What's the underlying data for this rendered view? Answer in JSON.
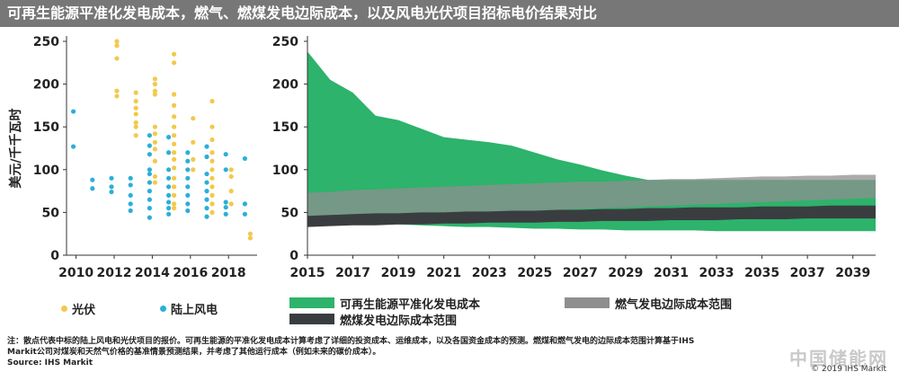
{
  "title": "可再生能源平准化发电成本，燃气、燃煤发电边际成本，以及风电光伏项目招标电价结果对比",
  "colors": {
    "solar": "#f2c94c",
    "wind": "#2bafd8",
    "lcoe": "#2db36b",
    "gas": "#8f8f8f",
    "coal": "#3a3d40",
    "title_bg": "#777777"
  },
  "legend": {
    "solar": "光伏",
    "wind": "陆上风电",
    "lcoe": "可再生能源平准化发电成本",
    "gas": "燃气发电边际成本范围",
    "coal": "燃煤发电边际成本范围"
  },
  "footnote": {
    "line1": "注：散点代表中标的陆上风电和光伏项目的报价。可再生能源的平准化发电成本计算考虑了详细的投资成本、运维成本，以及各国资金成本的预测。燃煤和燃气发电的边际成本范围计算基于IHS",
    "line2": "Markit公司对煤炭和天然气价格的基准情景预测结果，并考虑了其他运行成本（例如未来的碳价成本）。",
    "line3": "Source: IHS Markit"
  },
  "copyright": "© 2019 IHS Markit",
  "watermark": "中国储能网",
  "chart_data": [
    {
      "type": "scatter",
      "ylabel": "美元/千千瓦时",
      "ylim": [
        0,
        250
      ],
      "yticks": [
        0,
        50,
        100,
        150,
        200,
        250
      ],
      "xlim": [
        2009.5,
        2019.5
      ],
      "xticks": [
        2010,
        2012,
        2014,
        2016,
        2018
      ],
      "series": [
        {
          "name": "光伏",
          "points": [
            [
              2012,
              250
            ],
            [
              2012,
              245
            ],
            [
              2012,
              230
            ],
            [
              2012,
              192
            ],
            [
              2012,
              186
            ],
            [
              2013,
              190
            ],
            [
              2013,
              180
            ],
            [
              2013,
              172
            ],
            [
              2013,
              165
            ],
            [
              2013,
              155
            ],
            [
              2013,
              150
            ],
            [
              2013,
              140
            ],
            [
              2014,
              206
            ],
            [
              2014,
              200
            ],
            [
              2014,
              192
            ],
            [
              2014,
              188
            ],
            [
              2014,
              150
            ],
            [
              2014,
              142
            ],
            [
              2014,
              132
            ],
            [
              2014,
              124
            ],
            [
              2014,
              110
            ],
            [
              2014,
              92
            ],
            [
              2014,
              85
            ],
            [
              2015,
              235
            ],
            [
              2015,
              225
            ],
            [
              2015,
              188
            ],
            [
              2015,
              175
            ],
            [
              2015,
              162
            ],
            [
              2015,
              150
            ],
            [
              2015,
              140
            ],
            [
              2015,
              130
            ],
            [
              2015,
              120
            ],
            [
              2015,
              112
            ],
            [
              2015,
              102
            ],
            [
              2015,
              90
            ],
            [
              2015,
              80
            ],
            [
              2015,
              70
            ],
            [
              2015,
              60
            ],
            [
              2015,
              55
            ],
            [
              2016,
              160
            ],
            [
              2016,
              132
            ],
            [
              2016,
              112
            ],
            [
              2016,
              100
            ],
            [
              2017,
              180
            ],
            [
              2017,
              150
            ],
            [
              2017,
              135
            ],
            [
              2017,
              120
            ],
            [
              2017,
              110
            ],
            [
              2017,
              100
            ],
            [
              2017,
              90
            ],
            [
              2017,
              80
            ],
            [
              2017,
              70
            ],
            [
              2017,
              60
            ],
            [
              2017,
              50
            ],
            [
              2018,
              100
            ],
            [
              2018,
              92
            ],
            [
              2018,
              75
            ],
            [
              2018,
              60
            ],
            [
              2019,
              25
            ],
            [
              2019,
              20
            ]
          ]
        },
        {
          "name": "陆上风电",
          "points": [
            [
              2010,
              168
            ],
            [
              2010,
              127
            ],
            [
              2011,
              88
            ],
            [
              2011,
              78
            ],
            [
              2012,
              90
            ],
            [
              2012,
              80
            ],
            [
              2012,
              74
            ],
            [
              2013,
              90
            ],
            [
              2013,
              82
            ],
            [
              2013,
              70
            ],
            [
              2013,
              60
            ],
            [
              2013,
              52
            ],
            [
              2014,
              140
            ],
            [
              2014,
              128
            ],
            [
              2014,
              118
            ],
            [
              2014,
              100
            ],
            [
              2014,
              95
            ],
            [
              2014,
              85
            ],
            [
              2014,
              75
            ],
            [
              2014,
              65
            ],
            [
              2014,
              55
            ],
            [
              2014,
              44
            ],
            [
              2015,
              138
            ],
            [
              2015,
              120
            ],
            [
              2015,
              100
            ],
            [
              2015,
              90
            ],
            [
              2015,
              80
            ],
            [
              2015,
              70
            ],
            [
              2015,
              62
            ],
            [
              2015,
              55
            ],
            [
              2015,
              48
            ],
            [
              2016,
              120
            ],
            [
              2016,
              110
            ],
            [
              2016,
              100
            ],
            [
              2016,
              90
            ],
            [
              2016,
              80
            ],
            [
              2016,
              70
            ],
            [
              2016,
              60
            ],
            [
              2016,
              52
            ],
            [
              2017,
              127
            ],
            [
              2017,
              115
            ],
            [
              2017,
              95
            ],
            [
              2017,
              85
            ],
            [
              2017,
              75
            ],
            [
              2017,
              65
            ],
            [
              2017,
              55
            ],
            [
              2017,
              45
            ],
            [
              2018,
              118
            ],
            [
              2018,
              100
            ],
            [
              2018,
              62
            ],
            [
              2018,
              56
            ],
            [
              2018,
              48
            ],
            [
              2019,
              113
            ],
            [
              2019,
              60
            ],
            [
              2019,
              48
            ]
          ]
        }
      ]
    },
    {
      "type": "area",
      "ylim": [
        0,
        250
      ],
      "yticks": [
        0,
        50,
        100,
        150,
        200,
        250
      ],
      "xlim": [
        2015,
        2040
      ],
      "xticks": [
        2015,
        2017,
        2019,
        2021,
        2023,
        2025,
        2027,
        2029,
        2031,
        2033,
        2035,
        2037,
        2039
      ],
      "x": [
        2015,
        2016,
        2017,
        2018,
        2019,
        2020,
        2021,
        2022,
        2023,
        2024,
        2025,
        2026,
        2027,
        2028,
        2029,
        2030,
        2031,
        2032,
        2033,
        2034,
        2035,
        2036,
        2037,
        2038,
        2039,
        2040
      ],
      "series": [
        {
          "name": "可再生能源平准化发电成本",
          "upper": [
            238,
            205,
            190,
            163,
            158,
            148,
            138,
            135,
            132,
            128,
            120,
            112,
            106,
            99,
            93,
            88,
            88,
            88,
            88,
            88,
            88,
            88,
            88,
            88,
            88,
            88
          ],
          "lower": [
            40,
            39,
            38,
            37,
            36,
            35,
            34,
            33,
            33,
            32,
            31,
            31,
            30,
            30,
            29,
            29,
            29,
            29,
            28,
            28,
            28,
            28,
            28,
            28,
            28,
            28
          ]
        },
        {
          "name": "燃气发电边际成本范围",
          "upper": [
            73,
            74,
            76,
            77,
            78,
            79,
            80,
            81,
            82,
            83,
            84,
            85,
            86,
            86,
            87,
            88,
            89,
            89,
            90,
            91,
            92,
            92,
            93,
            93,
            94,
            94
          ],
          "lower": [
            43,
            44,
            45,
            46,
            47,
            48,
            49,
            50,
            51,
            51,
            52,
            53,
            54,
            55,
            56,
            57,
            58,
            59,
            60,
            61,
            62,
            63,
            64,
            65,
            66,
            67
          ]
        },
        {
          "name": "燃煤发电边际成本范围",
          "upper": [
            46,
            47,
            48,
            49,
            49,
            50,
            50,
            51,
            51,
            52,
            52,
            53,
            53,
            54,
            54,
            55,
            55,
            56,
            56,
            56,
            57,
            57,
            57,
            58,
            58,
            58
          ],
          "lower": [
            33,
            34,
            35,
            35,
            36,
            36,
            37,
            37,
            38,
            38,
            38,
            39,
            39,
            40,
            40,
            40,
            41,
            41,
            41,
            42,
            42,
            42,
            43,
            43,
            43,
            43
          ]
        }
      ]
    }
  ]
}
